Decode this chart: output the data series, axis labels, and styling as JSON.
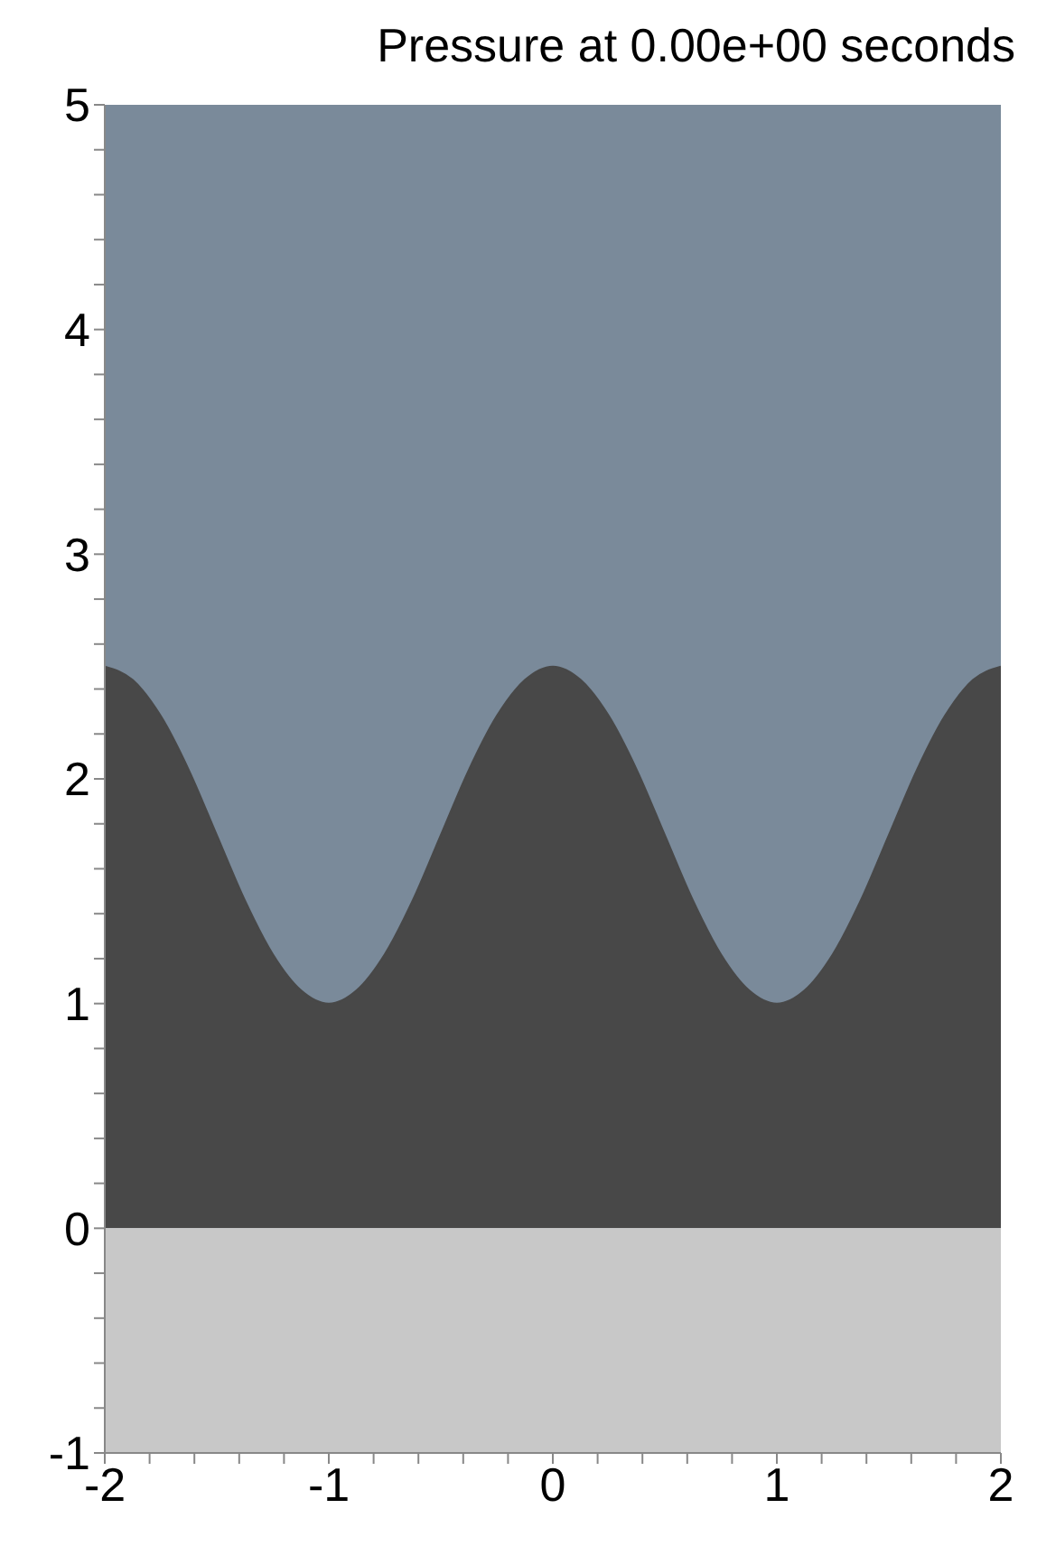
{
  "chart_data": {
    "type": "area",
    "title": "Pressure at 0.00e+00 seconds",
    "x": [
      -2,
      -1.875,
      -1.75,
      -1.625,
      -1.5,
      -1.375,
      -1.25,
      -1.125,
      -1,
      -0.875,
      -0.75,
      -0.625,
      -0.5,
      -0.375,
      -0.25,
      -0.125,
      0,
      0.125,
      0.25,
      0.375,
      0.5,
      0.625,
      0.75,
      0.875,
      1,
      1.125,
      1.25,
      1.375,
      1.5,
      1.625,
      1.75,
      1.875,
      2
    ],
    "series": [
      {
        "color": "#7a8a9a",
        "values": [
          5,
          5,
          5,
          5,
          5,
          5,
          5,
          5,
          5,
          5,
          5,
          5,
          5,
          5,
          5,
          5,
          5,
          5,
          5,
          5,
          5,
          5,
          5,
          5,
          5,
          5,
          5,
          5,
          5,
          5,
          5,
          5,
          5
        ]
      },
      {
        "color": "#484848",
        "values": [
          2.5,
          2.44,
          2.28,
          2.04,
          1.75,
          1.46,
          1.22,
          1.06,
          1.0,
          1.06,
          1.22,
          1.46,
          1.75,
          2.04,
          2.28,
          2.44,
          2.5,
          2.44,
          2.28,
          2.04,
          1.75,
          1.46,
          1.22,
          1.06,
          1.0,
          1.06,
          1.22,
          1.46,
          1.75,
          2.04,
          2.28,
          2.44,
          2.5
        ]
      },
      {
        "color": "#c8c8c8",
        "values": [
          -1,
          -1,
          -1,
          -1,
          -1,
          -1,
          -1,
          -1,
          -1,
          -1,
          -1,
          -1,
          -1,
          -1,
          -1,
          -1,
          -1,
          -1,
          -1,
          -1,
          -1,
          -1,
          -1,
          -1,
          -1,
          -1,
          -1,
          -1,
          -1,
          -1,
          -1,
          -1,
          -1
        ]
      }
    ],
    "xlim": [
      -2,
      2
    ],
    "xticks": [
      -2,
      {
        "value": -1.8,
        "label": null
      },
      {
        "value": -1.6,
        "label": null
      },
      {
        "value": -1.4,
        "label": null
      },
      {
        "value": -1.2,
        "label": null
      },
      -1,
      {
        "value": -0.8,
        "label": null
      },
      {
        "value": -0.6,
        "label": null
      },
      {
        "value": -0.4,
        "label": null
      },
      {
        "value": -0.2,
        "label": null
      },
      0,
      {
        "value": 0.2,
        "label": null
      },
      {
        "value": 0.4,
        "label": null
      },
      {
        "value": 0.6,
        "label": null
      },
      {
        "value": 0.8,
        "label": null
      },
      1,
      {
        "value": 1.2,
        "label": null
      },
      {
        "value": 1.4,
        "label": null
      },
      {
        "value": 1.6,
        "label": null
      },
      {
        "value": 1.8,
        "label": null
      },
      2
    ],
    "ylim": [
      -1,
      5
    ],
    "yticks": [
      -1,
      {
        "value": -0.8,
        "label": null
      },
      {
        "value": -0.6,
        "label": null
      },
      {
        "value": -0.4,
        "label": null
      },
      {
        "value": -0.2,
        "label": null
      },
      0,
      {
        "value": 0.2,
        "label": null
      },
      {
        "value": 0.4,
        "label": null
      },
      {
        "value": 0.6,
        "label": null
      },
      {
        "value": 0.8,
        "label": null
      },
      1,
      {
        "value": 1.2,
        "label": null
      },
      {
        "value": 1.4,
        "label": null
      },
      {
        "value": 1.6,
        "label": null
      },
      {
        "value": 1.8,
        "label": null
      },
      2,
      {
        "value": 2.2,
        "label": null
      },
      {
        "value": 2.4,
        "label": null
      },
      {
        "value": 2.6,
        "label": null
      },
      {
        "value": 2.8,
        "label": null
      },
      3,
      {
        "value": 3.2,
        "label": null
      },
      {
        "value": 3.4,
        "label": null
      },
      {
        "value": 3.6,
        "label": null
      },
      {
        "value": 3.8,
        "label": null
      },
      4,
      {
        "value": 4.2,
        "label": null
      },
      {
        "value": 4.4,
        "label": null
      },
      {
        "value": 4.6,
        "label": null
      },
      {
        "value": 4.8,
        "label": null
      },
      5
    ]
  }
}
